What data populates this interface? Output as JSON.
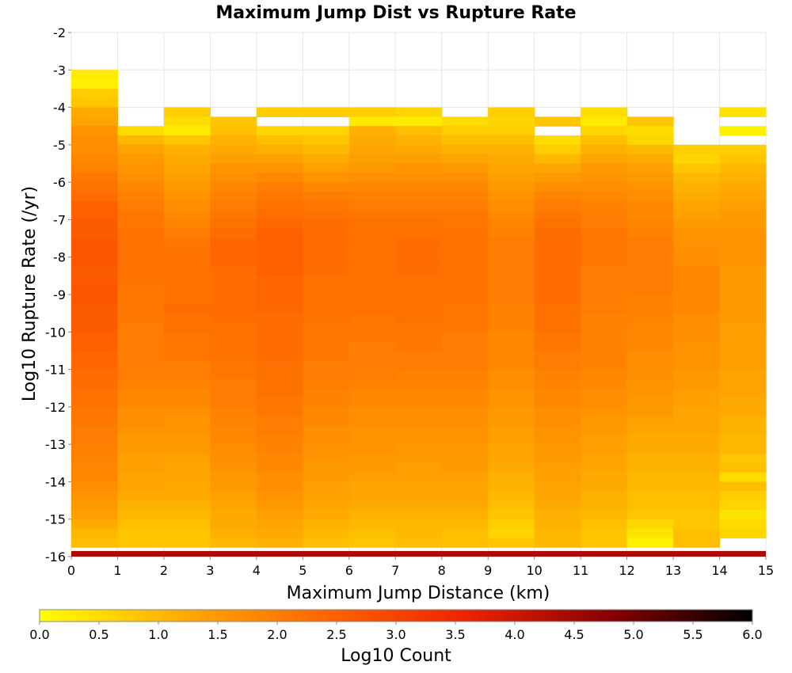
{
  "chart_data": {
    "type": "heatmap",
    "title": "Maximum Jump Dist vs Rupture Rate",
    "xlabel": "Maximum Jump Distance (km)",
    "ylabel": "Log10 Rupture Rate (/yr)",
    "colorbar_label": "Log10 Count",
    "xlim": [
      0,
      15
    ],
    "ylim": [
      -16,
      -2
    ],
    "x_ticks": [
      "0",
      "1",
      "2",
      "3",
      "4",
      "5",
      "6",
      "7",
      "8",
      "9",
      "10",
      "11",
      "12",
      "13",
      "14",
      "15"
    ],
    "y_ticks": [
      "-2",
      "-3",
      "-4",
      "-5",
      "-6",
      "-7",
      "-8",
      "-9",
      "-10",
      "-11",
      "-12",
      "-13",
      "-14",
      "-15",
      "-16"
    ],
    "colorbar_ticks": [
      "0.0",
      "0.5",
      "1.0",
      "1.5",
      "2.0",
      "2.5",
      "3.0",
      "3.5",
      "4.0",
      "4.5",
      "5.0",
      "5.5",
      "6.0"
    ],
    "colorbar_range": [
      0,
      6
    ],
    "colorscale": [
      "#ffff00",
      "#ffaa00",
      "#ff6600",
      "#ee2200",
      "#880000",
      "#000000"
    ],
    "x_bin_width_km": 1,
    "y_bin_top": -3,
    "y_bin_height": 0.25,
    "bottom_row": {
      "y": -16,
      "height": 0.15,
      "value": 4.4,
      "x_end": 15
    },
    "columns": [
      [
        0.3,
        0.2,
        0.7,
        0.8,
        1.2,
        1.3,
        1.6,
        1.7,
        1.7,
        1.8,
        1.9,
        2.1,
        2.2,
        2.3,
        2.5,
        2.5,
        2.6,
        2.6,
        2.7,
        2.7,
        2.7,
        2.6,
        2.6,
        2.7,
        2.7,
        2.6,
        2.6,
        2.6,
        2.5,
        2.5,
        2.4,
        2.4,
        2.3,
        2.3,
        2.2,
        2.2,
        2.1,
        2.1,
        2.0,
        2.0,
        1.9,
        1.9,
        1.8,
        1.8,
        1.7,
        1.6,
        1.5,
        1.4,
        1.2,
        1.0,
        0.9
      ],
      [
        null,
        null,
        null,
        null,
        null,
        null,
        0.5,
        1.0,
        1.3,
        1.5,
        1.6,
        1.7,
        1.8,
        1.9,
        2.0,
        2.1,
        2.1,
        2.2,
        2.2,
        2.2,
        2.2,
        2.2,
        2.2,
        2.1,
        2.1,
        2.1,
        2.1,
        2.0,
        2.0,
        2.0,
        2.0,
        2.0,
        2.0,
        1.9,
        1.8,
        1.8,
        1.7,
        1.7,
        1.6,
        1.5,
        1.5,
        1.4,
        1.4,
        1.3,
        1.3,
        1.2,
        1.1,
        1.0,
        0.9,
        0.8,
        0.8
      ],
      [
        null,
        null,
        null,
        null,
        0.7,
        0.5,
        0.3,
        0.8,
        1.1,
        1.2,
        1.3,
        1.4,
        1.5,
        1.6,
        1.7,
        1.8,
        1.9,
        2.0,
        2.1,
        2.2,
        2.2,
        2.2,
        2.2,
        2.2,
        2.2,
        2.3,
        2.2,
        2.2,
        2.1,
        2.1,
        2.1,
        2.0,
        2.0,
        1.9,
        1.8,
        1.8,
        1.7,
        1.6,
        1.6,
        1.5,
        1.5,
        1.4,
        1.3,
        1.3,
        1.2,
        1.2,
        1.1,
        1.0,
        0.9,
        0.8,
        0.8
      ],
      [
        null,
        null,
        null,
        null,
        null,
        0.8,
        0.9,
        1.1,
        1.2,
        1.4,
        1.6,
        1.7,
        1.8,
        1.9,
        2.0,
        2.1,
        2.2,
        2.3,
        2.4,
        2.4,
        2.4,
        2.3,
        2.3,
        2.3,
        2.3,
        2.3,
        2.3,
        2.2,
        2.2,
        2.2,
        2.2,
        2.1,
        2.1,
        2.0,
        2.0,
        2.0,
        1.9,
        1.9,
        1.8,
        1.8,
        1.7,
        1.7,
        1.6,
        1.5,
        1.5,
        1.4,
        1.3,
        1.2,
        1.2,
        1.1,
        1.0
      ],
      [
        null,
        null,
        null,
        null,
        0.7,
        null,
        0.6,
        0.9,
        1.1,
        1.4,
        1.6,
        1.8,
        2.0,
        2.1,
        2.2,
        2.3,
        2.4,
        2.5,
        2.5,
        2.5,
        2.5,
        2.5,
        2.4,
        2.4,
        2.4,
        2.4,
        2.3,
        2.3,
        2.3,
        2.3,
        2.3,
        2.2,
        2.2,
        2.2,
        2.2,
        2.1,
        2.1,
        2.0,
        2.0,
        1.9,
        1.9,
        1.8,
        1.8,
        1.7,
        1.7,
        1.6,
        1.5,
        1.4,
        1.3,
        1.2,
        1.1
      ],
      [
        null,
        null,
        null,
        null,
        0.7,
        null,
        0.6,
        0.8,
        1.0,
        1.2,
        1.4,
        1.6,
        1.8,
        2.0,
        2.1,
        2.2,
        2.3,
        2.3,
        2.3,
        2.3,
        2.3,
        2.3,
        2.2,
        2.2,
        2.2,
        2.2,
        2.2,
        2.1,
        2.1,
        2.1,
        2.1,
        2.0,
        2.0,
        2.0,
        1.9,
        1.9,
        1.8,
        1.8,
        1.7,
        1.7,
        1.6,
        1.6,
        1.5,
        1.5,
        1.4,
        1.4,
        1.3,
        1.2,
        1.1,
        1.0,
        0.9
      ],
      [
        null,
        null,
        null,
        null,
        0.7,
        0.3,
        1.1,
        1.2,
        1.3,
        1.4,
        1.5,
        1.7,
        1.8,
        1.9,
        2.0,
        2.1,
        2.2,
        2.2,
        2.2,
        2.2,
        2.2,
        2.2,
        2.2,
        2.2,
        2.2,
        2.2,
        2.1,
        2.1,
        2.1,
        2.0,
        2.0,
        2.0,
        2.0,
        1.9,
        1.8,
        1.8,
        1.7,
        1.7,
        1.6,
        1.6,
        1.6,
        1.5,
        1.5,
        1.4,
        1.3,
        1.3,
        1.2,
        1.1,
        1.0,
        0.9,
        0.8
      ],
      [
        null,
        null,
        null,
        null,
        0.6,
        0.3,
        0.9,
        1.1,
        1.2,
        1.4,
        1.6,
        1.7,
        1.8,
        1.9,
        2.0,
        2.1,
        2.2,
        2.2,
        2.3,
        2.3,
        2.3,
        2.3,
        2.2,
        2.2,
        2.2,
        2.2,
        2.2,
        2.1,
        2.1,
        2.1,
        2.0,
        2.0,
        1.9,
        1.9,
        1.8,
        1.8,
        1.7,
        1.7,
        1.6,
        1.6,
        1.5,
        1.5,
        1.4,
        1.4,
        1.3,
        1.3,
        1.2,
        1.1,
        1.0,
        1.0,
        0.9
      ],
      [
        null,
        null,
        null,
        null,
        null,
        0.5,
        0.7,
        0.9,
        1.1,
        1.3,
        1.5,
        1.7,
        1.8,
        1.9,
        2.0,
        2.1,
        2.1,
        2.2,
        2.2,
        2.2,
        2.2,
        2.2,
        2.2,
        2.2,
        2.2,
        2.1,
        2.1,
        2.1,
        2.0,
        2.0,
        2.0,
        2.0,
        1.9,
        1.9,
        1.8,
        1.8,
        1.7,
        1.7,
        1.6,
        1.6,
        1.5,
        1.5,
        1.5,
        1.4,
        1.3,
        1.3,
        1.2,
        1.1,
        1.0,
        0.9,
        0.9
      ],
      [
        null,
        null,
        null,
        null,
        0.7,
        0.6,
        0.7,
        0.9,
        1.1,
        1.2,
        1.3,
        1.4,
        1.5,
        1.6,
        1.7,
        1.8,
        1.9,
        1.9,
        2.0,
        2.0,
        2.0,
        2.0,
        2.0,
        2.0,
        2.0,
        1.9,
        1.9,
        1.9,
        1.8,
        1.8,
        1.8,
        1.8,
        1.7,
        1.7,
        1.6,
        1.6,
        1.5,
        1.5,
        1.4,
        1.4,
        1.3,
        1.3,
        1.2,
        1.1,
        1.1,
        1.0,
        0.9,
        0.8,
        0.7,
        0.6,
        0.8
      ],
      [
        null,
        null,
        null,
        null,
        null,
        0.8,
        null,
        0.5,
        0.7,
        1.0,
        1.3,
        1.5,
        1.7,
        1.9,
        2.0,
        2.1,
        2.2,
        2.3,
        2.3,
        2.3,
        2.3,
        2.3,
        2.3,
        2.3,
        2.3,
        2.2,
        2.2,
        2.2,
        2.1,
        2.1,
        2.0,
        2.0,
        1.9,
        1.9,
        1.8,
        1.8,
        1.7,
        1.7,
        1.6,
        1.6,
        1.5,
        1.5,
        1.4,
        1.4,
        1.3,
        1.3,
        1.2,
        1.1,
        1.1,
        1.0,
        1.0
      ],
      [
        null,
        null,
        null,
        null,
        0.5,
        0.3,
        0.6,
        0.9,
        1.1,
        1.3,
        1.5,
        1.6,
        1.7,
        1.8,
        1.9,
        2.0,
        2.0,
        2.1,
        2.1,
        2.1,
        2.1,
        2.0,
        2.0,
        2.0,
        2.0,
        2.0,
        1.9,
        1.9,
        1.9,
        1.9,
        1.9,
        1.9,
        1.8,
        1.8,
        1.7,
        1.7,
        1.6,
        1.5,
        1.5,
        1.4,
        1.4,
        1.3,
        1.3,
        1.2,
        1.2,
        1.1,
        1.1,
        1.0,
        0.9,
        0.8,
        0.8
      ],
      [
        null,
        null,
        null,
        null,
        null,
        0.8,
        0.5,
        0.6,
        1.0,
        1.2,
        1.4,
        1.5,
        1.6,
        1.7,
        1.8,
        1.8,
        1.9,
        1.9,
        2.0,
        2.0,
        2.0,
        2.0,
        2.0,
        2.0,
        1.9,
        1.9,
        1.9,
        1.8,
        1.8,
        1.8,
        1.7,
        1.7,
        1.7,
        1.6,
        1.6,
        1.5,
        1.5,
        1.4,
        1.3,
        1.2,
        1.2,
        1.1,
        1.1,
        1.0,
        1.0,
        0.9,
        0.9,
        0.8,
        0.6,
        0.4,
        0.2
      ],
      [
        null,
        null,
        null,
        null,
        null,
        null,
        null,
        null,
        0.7,
        0.6,
        0.8,
        1.0,
        1.1,
        1.2,
        1.3,
        1.4,
        1.5,
        1.6,
        1.6,
        1.7,
        1.7,
        1.8,
        1.8,
        1.8,
        1.8,
        1.8,
        1.7,
        1.7,
        1.7,
        1.6,
        1.6,
        1.6,
        1.5,
        1.5,
        1.4,
        1.4,
        1.3,
        1.3,
        1.3,
        1.2,
        1.2,
        1.1,
        1.1,
        1.0,
        1.0,
        0.9,
        0.9,
        0.8,
        0.8,
        0.9,
        0.9
      ],
      [
        null,
        null,
        null,
        null,
        0.4,
        null,
        0.2,
        null,
        0.7,
        0.8,
        1.0,
        1.1,
        1.2,
        1.3,
        1.4,
        1.5,
        1.5,
        1.6,
        1.6,
        1.6,
        1.6,
        1.5,
        1.5,
        1.5,
        1.5,
        1.5,
        1.5,
        1.4,
        1.4,
        1.4,
        1.4,
        1.4,
        1.3,
        1.3,
        1.3,
        1.2,
        1.2,
        1.1,
        1.1,
        1.0,
        1.0,
        0.8,
        0.9,
        0.5,
        0.9,
        0.7,
        0.6,
        0.4,
        0.5,
        0.6,
        null
      ]
    ]
  }
}
